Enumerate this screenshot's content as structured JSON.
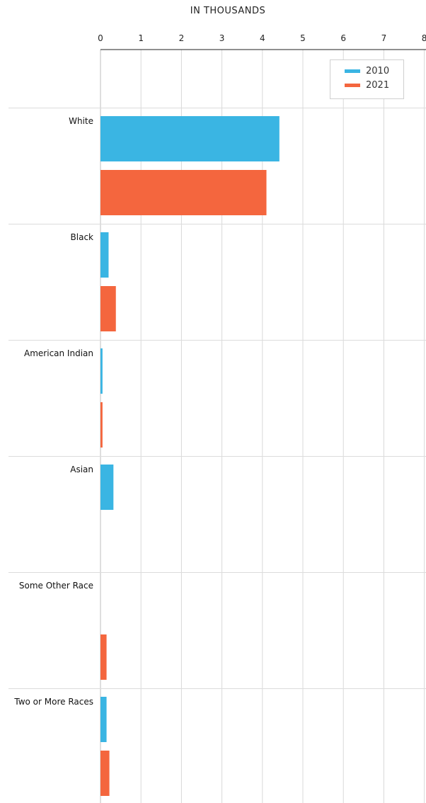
{
  "chart_data": {
    "type": "bar",
    "orientation": "horizontal",
    "xlabel": "IN THOUSANDS",
    "xlim": [
      0,
      8
    ],
    "xticks": [
      "0",
      "1",
      "2",
      "3",
      "4",
      "5",
      "6",
      "7",
      "8"
    ],
    "categories": [
      "White",
      "Black",
      "American Indian",
      "Asian",
      "Some Other Race",
      "Two or More Races"
    ],
    "series": [
      {
        "name": "2010",
        "color": "#3ab5e3",
        "values": [
          4.42,
          0.2,
          0.05,
          0.32,
          0,
          0.15
        ]
      },
      {
        "name": "2021",
        "color": "#f4663e",
        "values": [
          4.1,
          0.38,
          0.05,
          0,
          0.15,
          0.22
        ]
      }
    ],
    "grid": true,
    "legend_position": "top-right"
  }
}
